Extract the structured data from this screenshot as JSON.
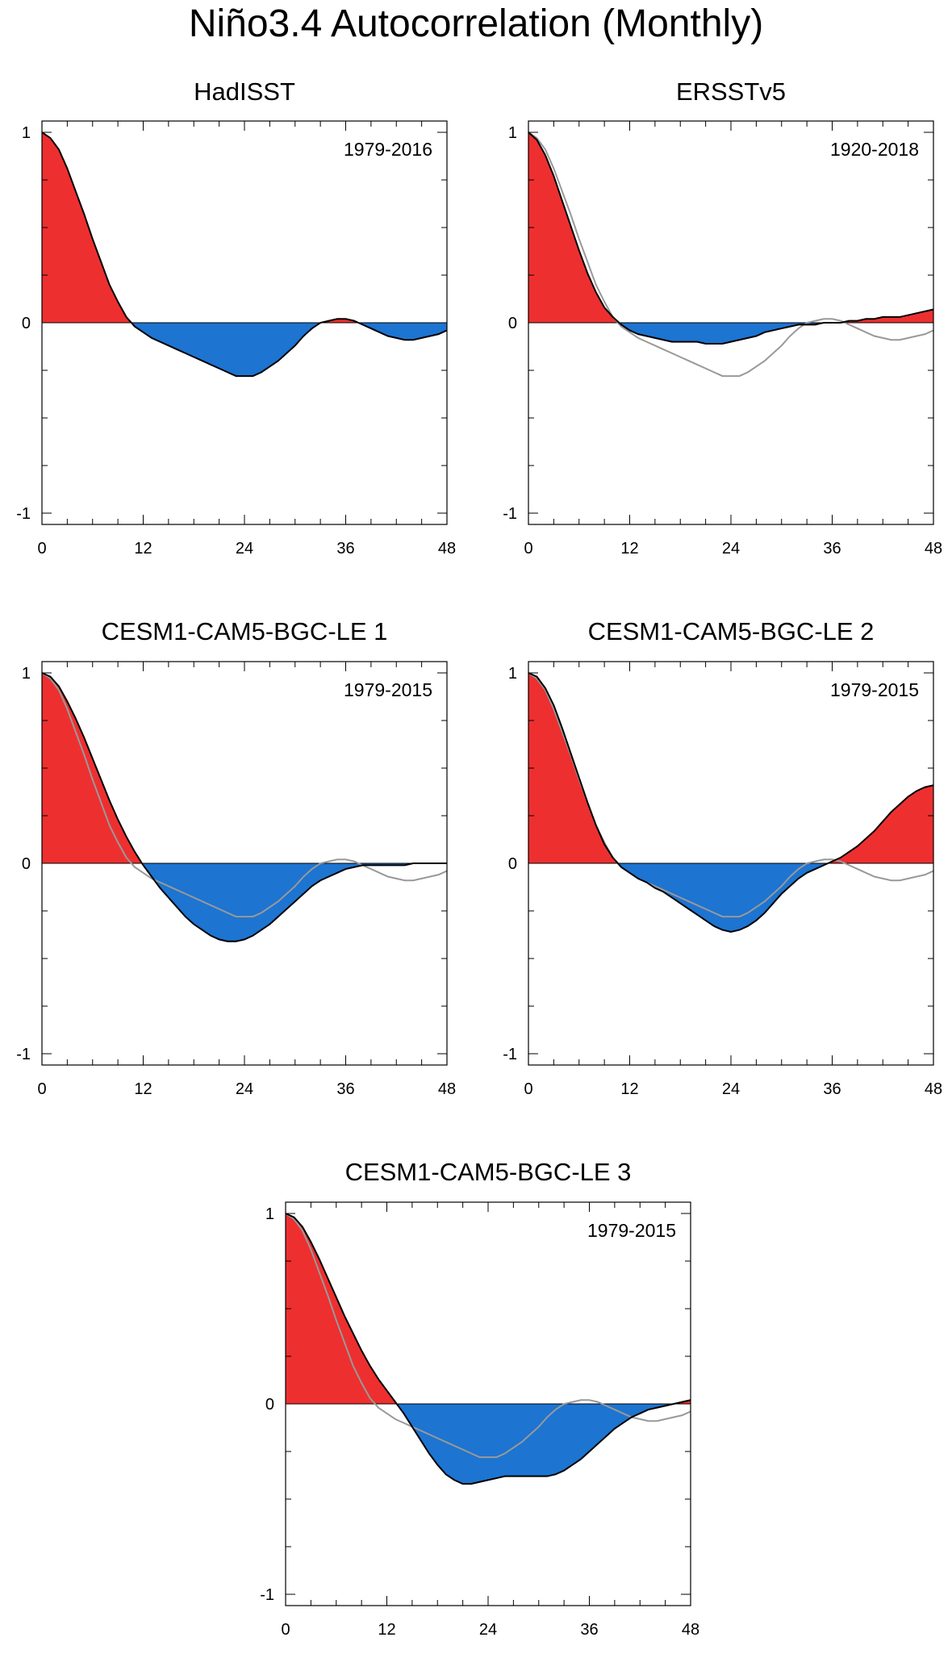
{
  "title": "Niño3.4 Autocorrelation (Monthly)",
  "colors": {
    "positive_fill": "#ee2f2f",
    "negative_fill": "#1d74d1",
    "main_line": "#000000",
    "reference_line": "#999999",
    "background": "#ffffff"
  },
  "chart_data": [
    {
      "type": "area",
      "title": "HadISST",
      "period_label": "1979-2016",
      "xlabel": "",
      "ylabel": "",
      "xlim": [
        0,
        48
      ],
      "ylim": [
        -1,
        1
      ],
      "xticks": [
        0,
        12,
        24,
        36,
        48
      ],
      "xtick_labels": [
        "0",
        "12",
        "24",
        "36",
        "48"
      ],
      "yticks": [
        -1,
        0,
        1
      ],
      "ytick_labels": [
        "-1",
        "0",
        "1"
      ],
      "x": [
        0,
        1,
        2,
        3,
        4,
        5,
        6,
        7,
        8,
        9,
        10,
        11,
        12,
        13,
        14,
        15,
        16,
        17,
        18,
        19,
        20,
        21,
        22,
        23,
        24,
        25,
        26,
        27,
        28,
        29,
        30,
        31,
        32,
        33,
        34,
        35,
        36,
        37,
        38,
        39,
        40,
        41,
        42,
        43,
        44,
        45,
        46,
        47,
        48
      ],
      "series": [
        {
          "name": "HadISST",
          "values": [
            1.0,
            0.97,
            0.91,
            0.81,
            0.69,
            0.57,
            0.44,
            0.32,
            0.2,
            0.11,
            0.03,
            -0.02,
            -0.05,
            -0.08,
            -0.1,
            -0.12,
            -0.14,
            -0.16,
            -0.18,
            -0.2,
            -0.22,
            -0.24,
            -0.26,
            -0.28,
            -0.28,
            -0.28,
            -0.26,
            -0.23,
            -0.2,
            -0.16,
            -0.12,
            -0.07,
            -0.03,
            0.0,
            0.01,
            0.02,
            0.02,
            0.01,
            -0.01,
            -0.03,
            -0.05,
            -0.07,
            -0.08,
            -0.09,
            -0.09,
            -0.08,
            -0.07,
            -0.06,
            -0.04
          ]
        }
      ]
    },
    {
      "type": "area",
      "title": "ERSSTv5",
      "period_label": "1920-2018",
      "xlabel": "",
      "ylabel": "",
      "xlim": [
        0,
        48
      ],
      "ylim": [
        -1,
        1
      ],
      "xticks": [
        0,
        12,
        24,
        36,
        48
      ],
      "xtick_labels": [
        "0",
        "12",
        "24",
        "36",
        "48"
      ],
      "yticks": [
        -1,
        0,
        1
      ],
      "ytick_labels": [
        "-1",
        "0",
        "1"
      ],
      "x": [
        0,
        1,
        2,
        3,
        4,
        5,
        6,
        7,
        8,
        9,
        10,
        11,
        12,
        13,
        14,
        15,
        16,
        17,
        18,
        19,
        20,
        21,
        22,
        23,
        24,
        25,
        26,
        27,
        28,
        29,
        30,
        31,
        32,
        33,
        34,
        35,
        36,
        37,
        38,
        39,
        40,
        41,
        42,
        43,
        44,
        45,
        46,
        47,
        48
      ],
      "series": [
        {
          "name": "ERSSTv5",
          "values": [
            1.0,
            0.96,
            0.88,
            0.77,
            0.64,
            0.51,
            0.38,
            0.26,
            0.16,
            0.08,
            0.03,
            -0.01,
            -0.04,
            -0.06,
            -0.07,
            -0.08,
            -0.09,
            -0.1,
            -0.1,
            -0.1,
            -0.1,
            -0.11,
            -0.11,
            -0.11,
            -0.1,
            -0.09,
            -0.08,
            -0.07,
            -0.05,
            -0.04,
            -0.03,
            -0.02,
            -0.01,
            -0.01,
            -0.01,
            0.0,
            0.0,
            0.0,
            0.01,
            0.01,
            0.02,
            0.02,
            0.03,
            0.03,
            0.03,
            0.04,
            0.05,
            0.06,
            0.07
          ]
        },
        {
          "name": "HadISST reference",
          "values": [
            1.0,
            0.97,
            0.91,
            0.81,
            0.69,
            0.57,
            0.44,
            0.32,
            0.2,
            0.11,
            0.03,
            -0.02,
            -0.05,
            -0.08,
            -0.1,
            -0.12,
            -0.14,
            -0.16,
            -0.18,
            -0.2,
            -0.22,
            -0.24,
            -0.26,
            -0.28,
            -0.28,
            -0.28,
            -0.26,
            -0.23,
            -0.2,
            -0.16,
            -0.12,
            -0.07,
            -0.03,
            0.0,
            0.01,
            0.02,
            0.02,
            0.01,
            -0.01,
            -0.03,
            -0.05,
            -0.07,
            -0.08,
            -0.09,
            -0.09,
            -0.08,
            -0.07,
            -0.06,
            -0.04
          ]
        }
      ]
    },
    {
      "type": "area",
      "title": "CESM1-CAM5-BGC-LE 1",
      "period_label": "1979-2015",
      "xlabel": "",
      "ylabel": "",
      "xlim": [
        0,
        48
      ],
      "ylim": [
        -1,
        1
      ],
      "xticks": [
        0,
        12,
        24,
        36,
        48
      ],
      "xtick_labels": [
        "0",
        "12",
        "24",
        "36",
        "48"
      ],
      "yticks": [
        -1,
        0,
        1
      ],
      "ytick_labels": [
        "-1",
        "0",
        "1"
      ],
      "x": [
        0,
        1,
        2,
        3,
        4,
        5,
        6,
        7,
        8,
        9,
        10,
        11,
        12,
        13,
        14,
        15,
        16,
        17,
        18,
        19,
        20,
        21,
        22,
        23,
        24,
        25,
        26,
        27,
        28,
        29,
        30,
        31,
        32,
        33,
        34,
        35,
        36,
        37,
        38,
        39,
        40,
        41,
        42,
        43,
        44,
        45,
        46,
        47,
        48
      ],
      "series": [
        {
          "name": "CESM1-CAM5-BGC-LE 1",
          "values": [
            1.0,
            0.98,
            0.93,
            0.85,
            0.76,
            0.66,
            0.55,
            0.44,
            0.33,
            0.23,
            0.14,
            0.06,
            -0.01,
            -0.07,
            -0.13,
            -0.18,
            -0.23,
            -0.28,
            -0.32,
            -0.35,
            -0.38,
            -0.4,
            -0.41,
            -0.41,
            -0.4,
            -0.38,
            -0.35,
            -0.32,
            -0.28,
            -0.24,
            -0.2,
            -0.16,
            -0.12,
            -0.09,
            -0.07,
            -0.05,
            -0.03,
            -0.02,
            -0.01,
            -0.01,
            -0.01,
            -0.01,
            -0.01,
            -0.01,
            0.0,
            0.0,
            0.0,
            0.0,
            0.0
          ]
        },
        {
          "name": "HadISST reference",
          "values": [
            1.0,
            0.97,
            0.91,
            0.81,
            0.69,
            0.57,
            0.44,
            0.32,
            0.2,
            0.11,
            0.03,
            -0.02,
            -0.05,
            -0.08,
            -0.1,
            -0.12,
            -0.14,
            -0.16,
            -0.18,
            -0.2,
            -0.22,
            -0.24,
            -0.26,
            -0.28,
            -0.28,
            -0.28,
            -0.26,
            -0.23,
            -0.2,
            -0.16,
            -0.12,
            -0.07,
            -0.03,
            0.0,
            0.01,
            0.02,
            0.02,
            0.01,
            -0.01,
            -0.03,
            -0.05,
            -0.07,
            -0.08,
            -0.09,
            -0.09,
            -0.08,
            -0.07,
            -0.06,
            -0.04
          ]
        }
      ]
    },
    {
      "type": "area",
      "title": "CESM1-CAM5-BGC-LE 2",
      "period_label": "1979-2015",
      "xlabel": "",
      "ylabel": "",
      "xlim": [
        0,
        48
      ],
      "ylim": [
        -1,
        1
      ],
      "xticks": [
        0,
        12,
        24,
        36,
        48
      ],
      "xtick_labels": [
        "0",
        "12",
        "24",
        "36",
        "48"
      ],
      "yticks": [
        -1,
        0,
        1
      ],
      "ytick_labels": [
        "-1",
        "0",
        "1"
      ],
      "x": [
        0,
        1,
        2,
        3,
        4,
        5,
        6,
        7,
        8,
        9,
        10,
        11,
        12,
        13,
        14,
        15,
        16,
        17,
        18,
        19,
        20,
        21,
        22,
        23,
        24,
        25,
        26,
        27,
        28,
        29,
        30,
        31,
        32,
        33,
        34,
        35,
        36,
        37,
        38,
        39,
        40,
        41,
        42,
        43,
        44,
        45,
        46,
        47,
        48
      ],
      "series": [
        {
          "name": "CESM1-CAM5-BGC-LE 2",
          "values": [
            1.0,
            0.98,
            0.92,
            0.83,
            0.71,
            0.58,
            0.45,
            0.32,
            0.2,
            0.1,
            0.03,
            -0.02,
            -0.05,
            -0.08,
            -0.1,
            -0.13,
            -0.15,
            -0.18,
            -0.21,
            -0.24,
            -0.27,
            -0.3,
            -0.33,
            -0.35,
            -0.36,
            -0.35,
            -0.33,
            -0.3,
            -0.26,
            -0.21,
            -0.16,
            -0.12,
            -0.08,
            -0.05,
            -0.03,
            -0.01,
            0.01,
            0.03,
            0.06,
            0.09,
            0.13,
            0.17,
            0.22,
            0.27,
            0.31,
            0.35,
            0.38,
            0.4,
            0.41
          ]
        },
        {
          "name": "HadISST reference",
          "values": [
            1.0,
            0.97,
            0.91,
            0.81,
            0.69,
            0.57,
            0.44,
            0.32,
            0.2,
            0.11,
            0.03,
            -0.02,
            -0.05,
            -0.08,
            -0.1,
            -0.12,
            -0.14,
            -0.16,
            -0.18,
            -0.2,
            -0.22,
            -0.24,
            -0.26,
            -0.28,
            -0.28,
            -0.28,
            -0.26,
            -0.23,
            -0.2,
            -0.16,
            -0.12,
            -0.07,
            -0.03,
            0.0,
            0.01,
            0.02,
            0.02,
            0.01,
            -0.01,
            -0.03,
            -0.05,
            -0.07,
            -0.08,
            -0.09,
            -0.09,
            -0.08,
            -0.07,
            -0.06,
            -0.04
          ]
        }
      ]
    },
    {
      "type": "area",
      "title": "CESM1-CAM5-BGC-LE 3",
      "period_label": "1979-2015",
      "xlabel": "",
      "ylabel": "",
      "xlim": [
        0,
        48
      ],
      "ylim": [
        -1,
        1
      ],
      "xticks": [
        0,
        12,
        24,
        36,
        48
      ],
      "xtick_labels": [
        "0",
        "12",
        "24",
        "36",
        "48"
      ],
      "yticks": [
        -1,
        0,
        1
      ],
      "ytick_labels": [
        "-1",
        "0",
        "1"
      ],
      "x": [
        0,
        1,
        2,
        3,
        4,
        5,
        6,
        7,
        8,
        9,
        10,
        11,
        12,
        13,
        14,
        15,
        16,
        17,
        18,
        19,
        20,
        21,
        22,
        23,
        24,
        25,
        26,
        27,
        28,
        29,
        30,
        31,
        32,
        33,
        34,
        35,
        36,
        37,
        38,
        39,
        40,
        41,
        42,
        43,
        44,
        45,
        46,
        47,
        48
      ],
      "series": [
        {
          "name": "CESM1-CAM5-BGC-LE 3",
          "values": [
            1.0,
            0.98,
            0.93,
            0.85,
            0.76,
            0.66,
            0.56,
            0.46,
            0.37,
            0.28,
            0.2,
            0.13,
            0.07,
            0.01,
            -0.05,
            -0.12,
            -0.19,
            -0.26,
            -0.32,
            -0.37,
            -0.4,
            -0.42,
            -0.42,
            -0.41,
            -0.4,
            -0.39,
            -0.38,
            -0.38,
            -0.38,
            -0.38,
            -0.38,
            -0.38,
            -0.37,
            -0.35,
            -0.32,
            -0.29,
            -0.25,
            -0.21,
            -0.17,
            -0.13,
            -0.1,
            -0.07,
            -0.05,
            -0.03,
            -0.02,
            -0.01,
            0.0,
            0.01,
            0.02
          ]
        },
        {
          "name": "HadISST reference",
          "values": [
            1.0,
            0.97,
            0.91,
            0.81,
            0.69,
            0.57,
            0.44,
            0.32,
            0.2,
            0.11,
            0.03,
            -0.02,
            -0.05,
            -0.08,
            -0.1,
            -0.12,
            -0.14,
            -0.16,
            -0.18,
            -0.2,
            -0.22,
            -0.24,
            -0.26,
            -0.28,
            -0.28,
            -0.28,
            -0.26,
            -0.23,
            -0.2,
            -0.16,
            -0.12,
            -0.07,
            -0.03,
            0.0,
            0.01,
            0.02,
            0.02,
            0.01,
            -0.01,
            -0.03,
            -0.05,
            -0.07,
            -0.08,
            -0.09,
            -0.09,
            -0.08,
            -0.07,
            -0.06,
            -0.04
          ]
        }
      ]
    }
  ]
}
